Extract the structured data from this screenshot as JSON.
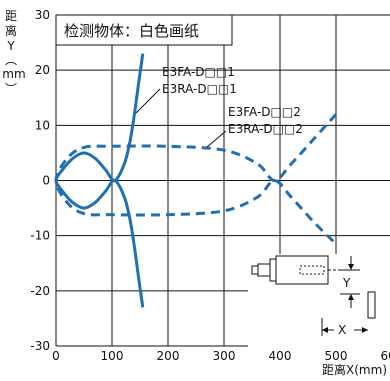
{
  "chart_data": {
    "type": "line",
    "title": "检测物体：白色画纸",
    "ylabel": "距离Y(mm)",
    "xlabel": "距离X(mm)",
    "xlim": [
      0,
      600
    ],
    "ylim": [
      -30,
      30
    ],
    "x_ticks": [
      "0",
      "100",
      "200",
      "300",
      "400",
      "500",
      "600"
    ],
    "y_ticks": [
      "30",
      "20",
      "10",
      "0",
      "-10",
      "-20",
      "-30"
    ],
    "grid": true,
    "colors": {
      "line": "#1f6fb2",
      "grid": "#111111"
    },
    "series": [
      {
        "name": "E3FA-D□□1 / E3RA-D□□1",
        "style": "solid",
        "points": [
          [
            155,
            23
          ],
          [
            148,
            18
          ],
          [
            140,
            12
          ],
          [
            132,
            7
          ],
          [
            122,
            3
          ],
          [
            105,
            0
          ],
          [
            88,
            2
          ],
          [
            70,
            4
          ],
          [
            50,
            5
          ],
          [
            30,
            4
          ],
          [
            12,
            2
          ],
          [
            0,
            0
          ],
          [
            12,
            -2
          ],
          [
            30,
            -4
          ],
          [
            50,
            -5
          ],
          [
            70,
            -4
          ],
          [
            88,
            -2
          ],
          [
            105,
            0
          ],
          [
            122,
            -3
          ],
          [
            132,
            -7
          ],
          [
            140,
            -12
          ],
          [
            148,
            -18
          ],
          [
            155,
            -23
          ]
        ]
      },
      {
        "name": "E3FA-D□□2 / E3RA-D□□2",
        "style": "dashed",
        "points": [
          [
            500,
            12
          ],
          [
            460,
            7.5
          ],
          [
            420,
            3
          ],
          [
            390,
            0
          ],
          [
            360,
            3
          ],
          [
            300,
            5.5
          ],
          [
            200,
            6.2
          ],
          [
            100,
            6.2
          ],
          [
            50,
            6
          ],
          [
            20,
            4
          ],
          [
            0,
            0
          ],
          [
            20,
            -4
          ],
          [
            50,
            -6
          ],
          [
            100,
            -6.2
          ],
          [
            200,
            -6.2
          ],
          [
            300,
            -5.5
          ],
          [
            360,
            -3
          ],
          [
            390,
            0
          ],
          [
            420,
            -3
          ],
          [
            460,
            -7.5
          ],
          [
            500,
            -11.5
          ]
        ]
      }
    ],
    "annotations": [
      {
        "text": "E3FA-D□□1"
      },
      {
        "text": "E3RA-D□□1"
      },
      {
        "text": "E3FA-D□□2"
      },
      {
        "text": "E3RA-D□□2"
      }
    ],
    "inset": {
      "x_label": "X",
      "y_label": "Y"
    }
  }
}
